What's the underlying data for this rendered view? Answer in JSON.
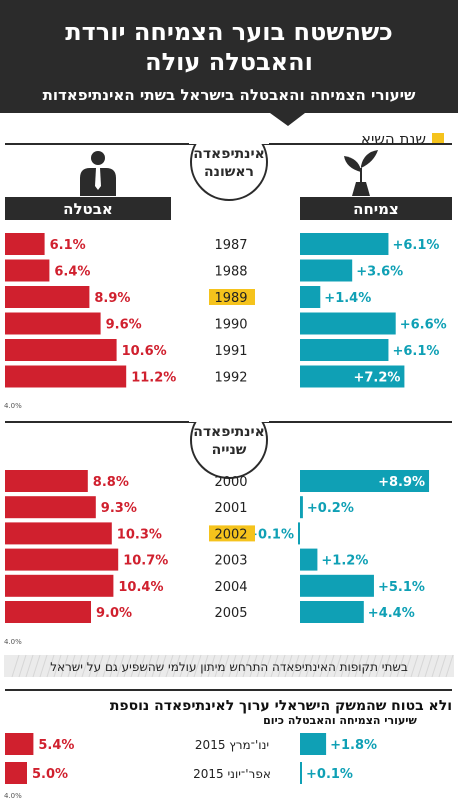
{
  "header": {
    "title_line1": "כשהשטח בוער הצמיחה יורדת",
    "title_line2": "והאבטלה עולה",
    "subtitle": "שיעורי הצמיחה והאבטלה בישראל בשתי האינתיפאדות"
  },
  "legend": {
    "label": "שנת השיא",
    "color": "#f5c31c"
  },
  "columns": {
    "unemployment": "אבטלה",
    "growth": "צמיחה"
  },
  "colors": {
    "unemployment": "#d0202e",
    "growth": "#0fa0b5",
    "highlight": "#f5c31c",
    "dark": "#2b2b2b"
  },
  "icons": [
    "businessman-icon",
    "seedling-icon"
  ],
  "chart_data": [
    {
      "type": "bar",
      "section_label_line1": "אינתיפאדה",
      "section_label_line2": "ראשונה",
      "categories": [
        "1987",
        "1988",
        "1989",
        "1990",
        "1991",
        "1992"
      ],
      "highlight_year": "1989",
      "unemployment_labels": [
        "6.1%",
        "6.4%",
        "8.9%",
        "9.6%",
        "10.6%",
        "11.2%"
      ],
      "unemployment": [
        6.1,
        6.4,
        8.9,
        9.6,
        10.6,
        11.2
      ],
      "growth_labels": [
        "+6.1%",
        "+3.6%",
        "+1.4%",
        "+6.6%",
        "+6.1%",
        "+7.2%"
      ],
      "growth": [
        6.1,
        3.6,
        1.4,
        6.6,
        6.1,
        7.2
      ],
      "axis_label": "4.0%"
    },
    {
      "type": "bar",
      "section_label_line1": "אינתיפאדה",
      "section_label_line2": "שנייה",
      "categories": [
        "2000",
        "2001",
        "2002",
        "2003",
        "2004",
        "2005"
      ],
      "highlight_year": "2002",
      "unemployment_labels": [
        "8.8%",
        "9.3%",
        "10.3%",
        "10.7%",
        "10.4%",
        "9.0%"
      ],
      "unemployment": [
        8.8,
        9.3,
        10.3,
        10.7,
        10.4,
        9.0
      ],
      "growth_labels": [
        "+8.9%",
        "+0.2%",
        "−0.1%",
        "+1.2%",
        "+5.1%",
        "+4.4%"
      ],
      "growth": [
        8.9,
        0.2,
        -0.1,
        1.2,
        5.1,
        4.4
      ],
      "axis_label": "4.0%"
    },
    {
      "type": "bar",
      "categories": [
        "ינו'־מרץ 2015",
        "אפר'־יוני 2015"
      ],
      "unemployment_labels": [
        "5.4%",
        "5.0%"
      ],
      "unemployment": [
        5.4,
        5.0
      ],
      "growth_labels": [
        "+1.8%",
        "+0.1%"
      ],
      "growth": [
        1.8,
        0.1
      ],
      "axis_label": "4.0%"
    }
  ],
  "note": "בשתי תקופות האינתיפאדה התרחש מיתון עולמי שהשפיע גם על ישראל",
  "bottom": {
    "title": "ולא בטוח שהמשק הישראלי ערוך לאינתיפאדה נוספת",
    "subtitle": "שיעורי הצמיחה והאבטלה כיום"
  }
}
